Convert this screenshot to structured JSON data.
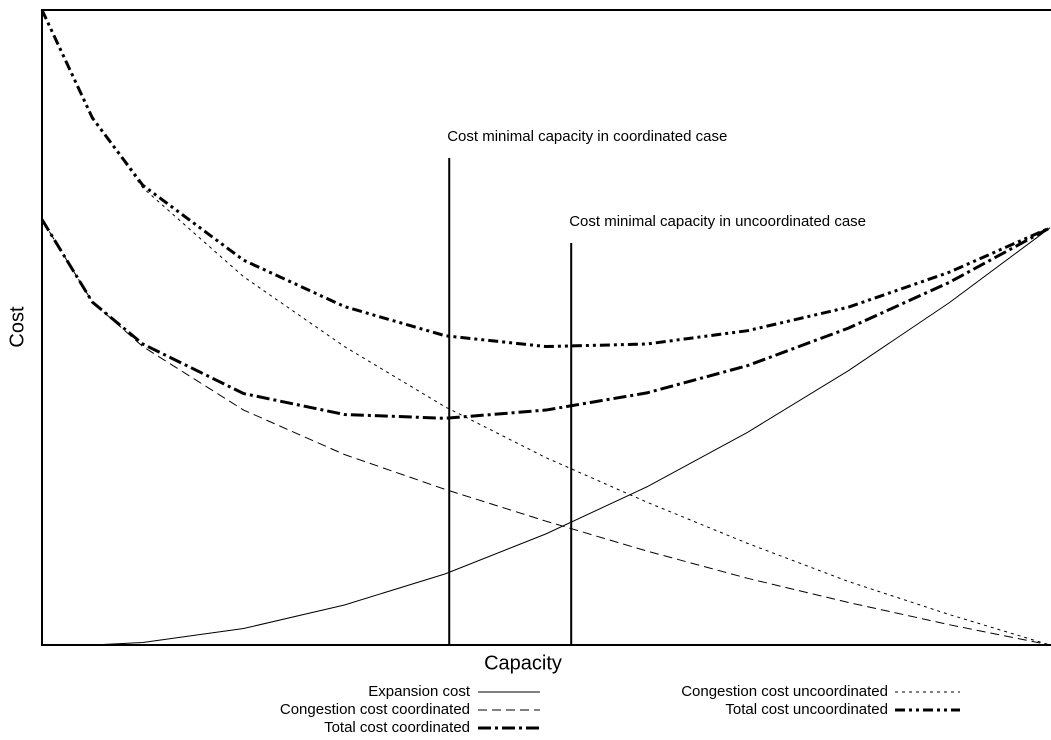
{
  "chart_data": {
    "type": "line",
    "x_label": "Capacity",
    "y_label": "Cost",
    "xlim": [
      0,
      100
    ],
    "ylim": [
      0,
      100
    ],
    "x": [
      0,
      5,
      10,
      20,
      30,
      40,
      50,
      60,
      70,
      80,
      90,
      100
    ],
    "series": [
      {
        "name": "Expansion cost",
        "color": "#000000",
        "style": "solid",
        "linewidth": 1,
        "values": [
          0,
          0,
          0.4,
          2.6,
          6.3,
          11.2,
          17.5,
          24.9,
          33.5,
          43.2,
          53.9,
          65.7
        ]
      },
      {
        "name": "Congestion cost coordinated",
        "color": "#000000",
        "style": "dashed",
        "linewidth": 1,
        "values": [
          67,
          54,
          47,
          37,
          30,
          24.5,
          19.5,
          14.8,
          10.5,
          6.7,
          3.2,
          0
        ]
      },
      {
        "name": "Total cost coordinated",
        "color": "#000000",
        "style": "dashdot",
        "linewidth": 3,
        "values": [
          67,
          54,
          47.4,
          39.6,
          36.3,
          35.7,
          37,
          39.7,
          44,
          49.9,
          57.1,
          65.7
        ]
      },
      {
        "name": "Congestion cost uncoordinated",
        "color": "#000000",
        "style": "dotted",
        "linewidth": 1,
        "values": [
          100,
          83,
          72,
          58,
          47,
          37.5,
          29.5,
          22.5,
          16,
          10,
          4.8,
          0
        ]
      },
      {
        "name": "Total cost uncoordinated",
        "color": "#000000",
        "style": "dashdotdot",
        "linewidth": 3,
        "values": [
          100,
          83,
          72.4,
          60.6,
          53.3,
          48.7,
          47,
          47.4,
          49.5,
          53.2,
          58.7,
          65.7
        ]
      }
    ],
    "annotations": [
      {
        "text": "Cost minimal capacity in coordinated case",
        "x": 40.4,
        "y": 76.7
      },
      {
        "text": "Cost minimal capacity in uncoordinated case",
        "x": 52.5,
        "y": 63.3
      }
    ],
    "legend": "bottom"
  }
}
